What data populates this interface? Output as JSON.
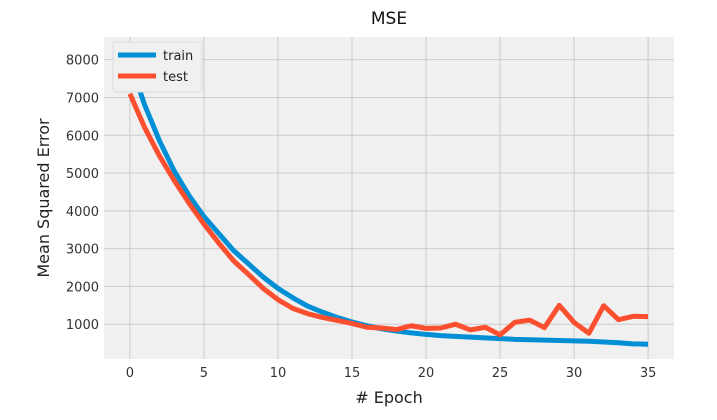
{
  "chart_data": {
    "type": "line",
    "title": "MSE",
    "xlabel": "# Epoch",
    "ylabel": "Mean Squared Error",
    "xlim": [
      -1.75,
      36.75
    ],
    "ylim": [
      80,
      8600
    ],
    "xticks": [
      0,
      5,
      10,
      15,
      20,
      25,
      30,
      35
    ],
    "yticks": [
      1000,
      2000,
      3000,
      4000,
      5000,
      6000,
      7000,
      8000
    ],
    "grid": true,
    "legend_position": "top-left",
    "x": [
      0,
      1,
      2,
      3,
      4,
      5,
      6,
      7,
      8,
      9,
      10,
      11,
      12,
      13,
      14,
      15,
      16,
      17,
      18,
      19,
      20,
      21,
      22,
      23,
      24,
      25,
      26,
      27,
      28,
      29,
      30,
      31,
      32,
      33,
      34,
      35
    ],
    "series": [
      {
        "name": "train",
        "color": "#008fd5",
        "values": [
          7950,
          6800,
          5850,
          5050,
          4400,
          3850,
          3400,
          2950,
          2600,
          2250,
          1950,
          1700,
          1480,
          1320,
          1180,
          1060,
          960,
          880,
          820,
          770,
          730,
          700,
          680,
          660,
          640,
          620,
          600,
          590,
          580,
          570,
          560,
          550,
          530,
          510,
          480,
          470
        ]
      },
      {
        "name": "test",
        "color": "#fc4f30",
        "values": [
          7100,
          6200,
          5450,
          4800,
          4200,
          3650,
          3150,
          2680,
          2320,
          1950,
          1650,
          1420,
          1280,
          1180,
          1100,
          1020,
          920,
          900,
          860,
          960,
          890,
          900,
          1000,
          850,
          920,
          720,
          1050,
          1110,
          910,
          1500,
          1050,
          760,
          1490,
          1120,
          1210,
          1200
        ]
      }
    ]
  }
}
